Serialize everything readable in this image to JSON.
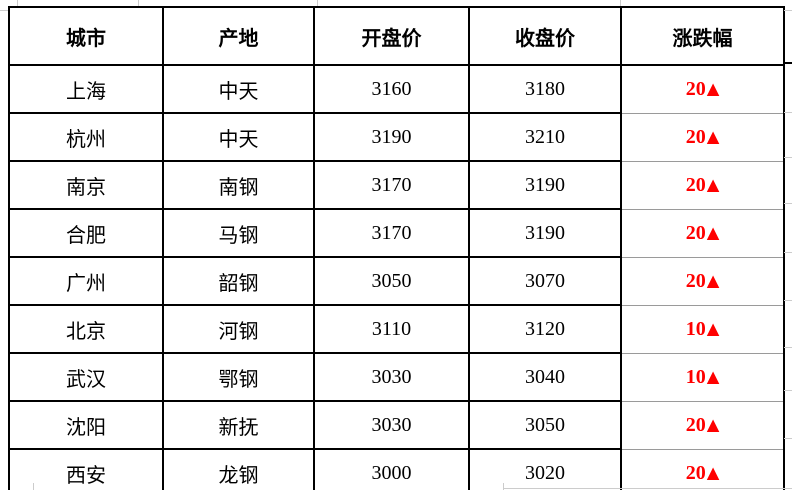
{
  "table": {
    "columns": [
      {
        "key": "city",
        "label": "城市"
      },
      {
        "key": "origin",
        "label": "产地"
      },
      {
        "key": "open",
        "label": "开盘价"
      },
      {
        "key": "close",
        "label": "收盘价"
      },
      {
        "key": "change",
        "label": "涨跌幅"
      }
    ],
    "rows": [
      {
        "city": "上海",
        "origin": "中天",
        "open": "3160",
        "close": "3180",
        "change": "20",
        "arrow": "▲"
      },
      {
        "city": "杭州",
        "origin": "中天",
        "open": "3190",
        "close": "3210",
        "change": "20",
        "arrow": "▲"
      },
      {
        "city": "南京",
        "origin": "南钢",
        "open": "3170",
        "close": "3190",
        "change": "20",
        "arrow": "▲"
      },
      {
        "city": "合肥",
        "origin": "马钢",
        "open": "3170",
        "close": "3190",
        "change": "20",
        "arrow": "▲"
      },
      {
        "city": "广州",
        "origin": "韶钢",
        "open": "3050",
        "close": "3070",
        "change": "20",
        "arrow": "▲"
      },
      {
        "city": "北京",
        "origin": "河钢",
        "open": "3110",
        "close": "3120",
        "change": "10",
        "arrow": "▲"
      },
      {
        "city": "武汉",
        "origin": "鄂钢",
        "open": "3030",
        "close": "3040",
        "change": "10",
        "arrow": "▲"
      },
      {
        "city": "沈阳",
        "origin": "新抚",
        "open": "3030",
        "close": "3050",
        "change": "20",
        "arrow": "▲"
      },
      {
        "city": "西安",
        "origin": "龙钢",
        "open": "3000",
        "close": "3020",
        "change": "20",
        "arrow": "▲"
      }
    ],
    "colors": {
      "change_up": "#ff0000",
      "border": "#000000",
      "gridline": "#9a9a9a"
    }
  }
}
